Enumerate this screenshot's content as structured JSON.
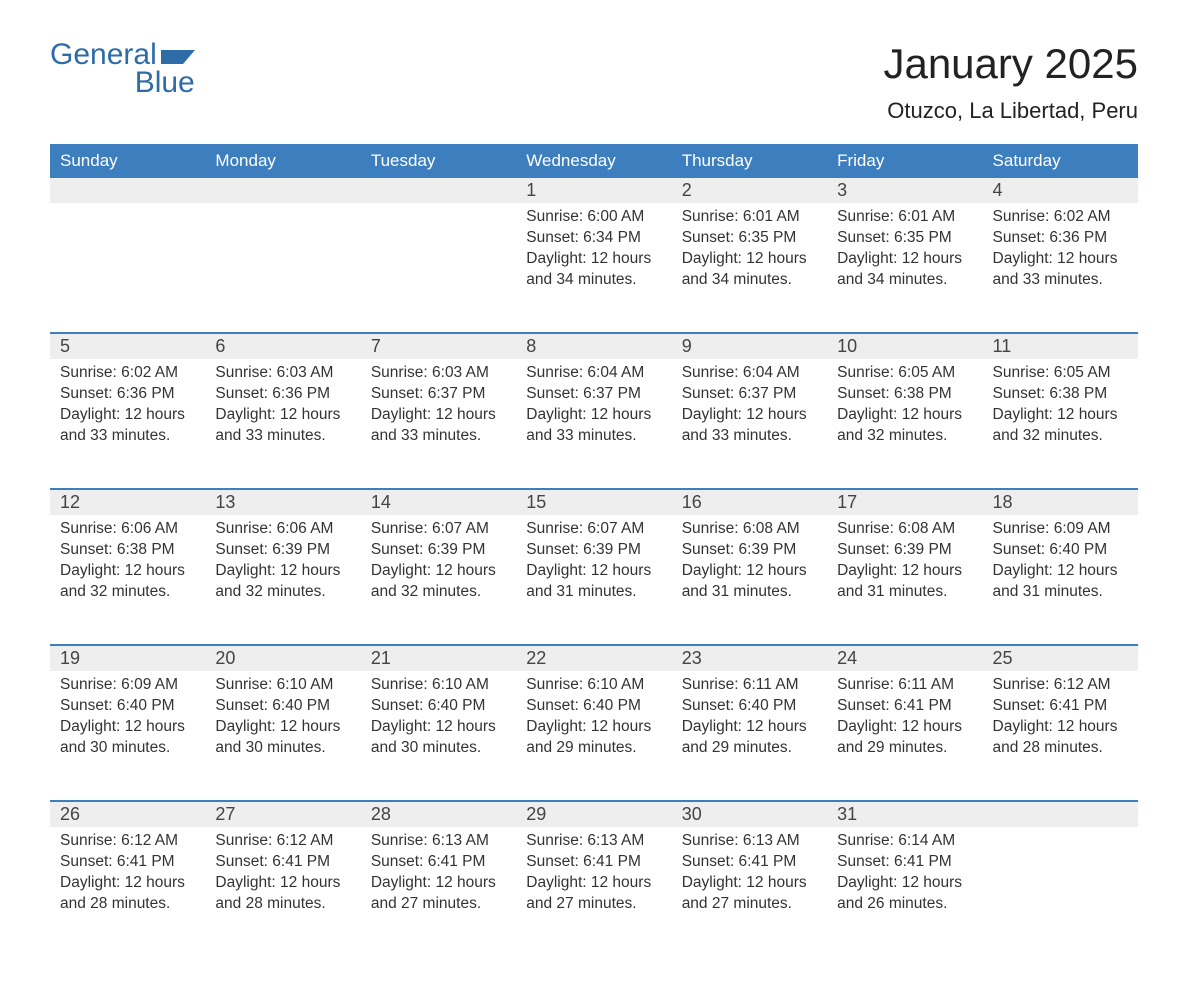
{
  "logo": {
    "word1": "General",
    "word2": "Blue",
    "brand_color": "#2e6ca8"
  },
  "title": "January 2025",
  "location": "Otuzco, La Libertad, Peru",
  "colors": {
    "header_bg": "#3d7ebf",
    "header_text": "#ffffff",
    "daynum_bg": "#eeeeee",
    "week_divider": "#3d7ebf",
    "body_text": "#333333",
    "page_bg": "#ffffff"
  },
  "layout": {
    "columns": 7,
    "weeks": 5,
    "title_fontsize": 42,
    "location_fontsize": 22,
    "header_fontsize": 17,
    "daynum_fontsize": 18,
    "cell_fontsize": 15.5
  },
  "weekdays": [
    "Sunday",
    "Monday",
    "Tuesday",
    "Wednesday",
    "Thursday",
    "Friday",
    "Saturday"
  ],
  "weeks": [
    [
      null,
      null,
      null,
      {
        "day": "1",
        "sunrise": "Sunrise: 6:00 AM",
        "sunset": "Sunset: 6:34 PM",
        "daylight1": "Daylight: 12 hours",
        "daylight2": "and 34 minutes."
      },
      {
        "day": "2",
        "sunrise": "Sunrise: 6:01 AM",
        "sunset": "Sunset: 6:35 PM",
        "daylight1": "Daylight: 12 hours",
        "daylight2": "and 34 minutes."
      },
      {
        "day": "3",
        "sunrise": "Sunrise: 6:01 AM",
        "sunset": "Sunset: 6:35 PM",
        "daylight1": "Daylight: 12 hours",
        "daylight2": "and 34 minutes."
      },
      {
        "day": "4",
        "sunrise": "Sunrise: 6:02 AM",
        "sunset": "Sunset: 6:36 PM",
        "daylight1": "Daylight: 12 hours",
        "daylight2": "and 33 minutes."
      }
    ],
    [
      {
        "day": "5",
        "sunrise": "Sunrise: 6:02 AM",
        "sunset": "Sunset: 6:36 PM",
        "daylight1": "Daylight: 12 hours",
        "daylight2": "and 33 minutes."
      },
      {
        "day": "6",
        "sunrise": "Sunrise: 6:03 AM",
        "sunset": "Sunset: 6:36 PM",
        "daylight1": "Daylight: 12 hours",
        "daylight2": "and 33 minutes."
      },
      {
        "day": "7",
        "sunrise": "Sunrise: 6:03 AM",
        "sunset": "Sunset: 6:37 PM",
        "daylight1": "Daylight: 12 hours",
        "daylight2": "and 33 minutes."
      },
      {
        "day": "8",
        "sunrise": "Sunrise: 6:04 AM",
        "sunset": "Sunset: 6:37 PM",
        "daylight1": "Daylight: 12 hours",
        "daylight2": "and 33 minutes."
      },
      {
        "day": "9",
        "sunrise": "Sunrise: 6:04 AM",
        "sunset": "Sunset: 6:37 PM",
        "daylight1": "Daylight: 12 hours",
        "daylight2": "and 33 minutes."
      },
      {
        "day": "10",
        "sunrise": "Sunrise: 6:05 AM",
        "sunset": "Sunset: 6:38 PM",
        "daylight1": "Daylight: 12 hours",
        "daylight2": "and 32 minutes."
      },
      {
        "day": "11",
        "sunrise": "Sunrise: 6:05 AM",
        "sunset": "Sunset: 6:38 PM",
        "daylight1": "Daylight: 12 hours",
        "daylight2": "and 32 minutes."
      }
    ],
    [
      {
        "day": "12",
        "sunrise": "Sunrise: 6:06 AM",
        "sunset": "Sunset: 6:38 PM",
        "daylight1": "Daylight: 12 hours",
        "daylight2": "and 32 minutes."
      },
      {
        "day": "13",
        "sunrise": "Sunrise: 6:06 AM",
        "sunset": "Sunset: 6:39 PM",
        "daylight1": "Daylight: 12 hours",
        "daylight2": "and 32 minutes."
      },
      {
        "day": "14",
        "sunrise": "Sunrise: 6:07 AM",
        "sunset": "Sunset: 6:39 PM",
        "daylight1": "Daylight: 12 hours",
        "daylight2": "and 32 minutes."
      },
      {
        "day": "15",
        "sunrise": "Sunrise: 6:07 AM",
        "sunset": "Sunset: 6:39 PM",
        "daylight1": "Daylight: 12 hours",
        "daylight2": "and 31 minutes."
      },
      {
        "day": "16",
        "sunrise": "Sunrise: 6:08 AM",
        "sunset": "Sunset: 6:39 PM",
        "daylight1": "Daylight: 12 hours",
        "daylight2": "and 31 minutes."
      },
      {
        "day": "17",
        "sunrise": "Sunrise: 6:08 AM",
        "sunset": "Sunset: 6:39 PM",
        "daylight1": "Daylight: 12 hours",
        "daylight2": "and 31 minutes."
      },
      {
        "day": "18",
        "sunrise": "Sunrise: 6:09 AM",
        "sunset": "Sunset: 6:40 PM",
        "daylight1": "Daylight: 12 hours",
        "daylight2": "and 31 minutes."
      }
    ],
    [
      {
        "day": "19",
        "sunrise": "Sunrise: 6:09 AM",
        "sunset": "Sunset: 6:40 PM",
        "daylight1": "Daylight: 12 hours",
        "daylight2": "and 30 minutes."
      },
      {
        "day": "20",
        "sunrise": "Sunrise: 6:10 AM",
        "sunset": "Sunset: 6:40 PM",
        "daylight1": "Daylight: 12 hours",
        "daylight2": "and 30 minutes."
      },
      {
        "day": "21",
        "sunrise": "Sunrise: 6:10 AM",
        "sunset": "Sunset: 6:40 PM",
        "daylight1": "Daylight: 12 hours",
        "daylight2": "and 30 minutes."
      },
      {
        "day": "22",
        "sunrise": "Sunrise: 6:10 AM",
        "sunset": "Sunset: 6:40 PM",
        "daylight1": "Daylight: 12 hours",
        "daylight2": "and 29 minutes."
      },
      {
        "day": "23",
        "sunrise": "Sunrise: 6:11 AM",
        "sunset": "Sunset: 6:40 PM",
        "daylight1": "Daylight: 12 hours",
        "daylight2": "and 29 minutes."
      },
      {
        "day": "24",
        "sunrise": "Sunrise: 6:11 AM",
        "sunset": "Sunset: 6:41 PM",
        "daylight1": "Daylight: 12 hours",
        "daylight2": "and 29 minutes."
      },
      {
        "day": "25",
        "sunrise": "Sunrise: 6:12 AM",
        "sunset": "Sunset: 6:41 PM",
        "daylight1": "Daylight: 12 hours",
        "daylight2": "and 28 minutes."
      }
    ],
    [
      {
        "day": "26",
        "sunrise": "Sunrise: 6:12 AM",
        "sunset": "Sunset: 6:41 PM",
        "daylight1": "Daylight: 12 hours",
        "daylight2": "and 28 minutes."
      },
      {
        "day": "27",
        "sunrise": "Sunrise: 6:12 AM",
        "sunset": "Sunset: 6:41 PM",
        "daylight1": "Daylight: 12 hours",
        "daylight2": "and 28 minutes."
      },
      {
        "day": "28",
        "sunrise": "Sunrise: 6:13 AM",
        "sunset": "Sunset: 6:41 PM",
        "daylight1": "Daylight: 12 hours",
        "daylight2": "and 27 minutes."
      },
      {
        "day": "29",
        "sunrise": "Sunrise: 6:13 AM",
        "sunset": "Sunset: 6:41 PM",
        "daylight1": "Daylight: 12 hours",
        "daylight2": "and 27 minutes."
      },
      {
        "day": "30",
        "sunrise": "Sunrise: 6:13 AM",
        "sunset": "Sunset: 6:41 PM",
        "daylight1": "Daylight: 12 hours",
        "daylight2": "and 27 minutes."
      },
      {
        "day": "31",
        "sunrise": "Sunrise: 6:14 AM",
        "sunset": "Sunset: 6:41 PM",
        "daylight1": "Daylight: 12 hours",
        "daylight2": "and 26 minutes."
      },
      null
    ]
  ]
}
